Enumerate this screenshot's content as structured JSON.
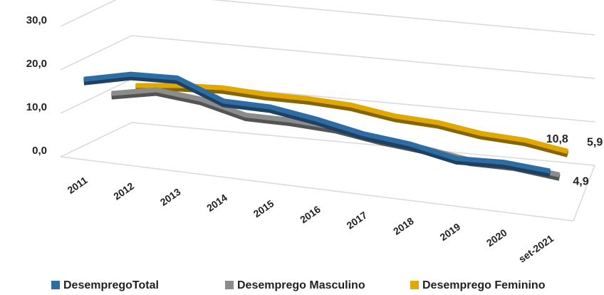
{
  "chart_data": {
    "type": "line",
    "categories": [
      "2011",
      "2012",
      "2013",
      "2014",
      "2015",
      "2016",
      "2017",
      "2018",
      "2019",
      "2020",
      "set-2021"
    ],
    "series": [
      {
        "name": "DesempregoTotal",
        "color": "#2e6da4",
        "values": [
          18.5,
          21,
          21.5,
          17.5,
          17.5,
          16,
          14,
          13,
          11,
          11.5,
          10.8
        ],
        "value_labels": [
          null,
          null,
          null,
          null,
          null,
          null,
          null,
          null,
          null,
          null,
          "10,8"
        ]
      },
      {
        "name": "Desemprego Masculino",
        "color": "#8c8c8c",
        "values": [
          12,
          14,
          13,
          10.5,
          10.5,
          10,
          8.5,
          7.5,
          6,
          6,
          4.9
        ],
        "value_labels": [
          null,
          null,
          null,
          null,
          null,
          null,
          null,
          null,
          null,
          null,
          "4,9"
        ]
      },
      {
        "name": "Desemprego Feminino",
        "color": "#e0a800",
        "values": [
          11,
          12,
          12.5,
          12,
          12,
          11.5,
          10,
          9.5,
          8,
          7.5,
          5.9
        ],
        "value_labels": [
          null,
          null,
          null,
          null,
          null,
          null,
          null,
          null,
          null,
          null,
          "5,9"
        ]
      }
    ],
    "ylim": [
      0,
      30
    ],
    "yticks": [
      {
        "value": 0,
        "label": "0,0"
      },
      {
        "value": 10,
        "label": "10,0"
      },
      {
        "value": 20,
        "label": "20,0"
      },
      {
        "value": 30,
        "label": "30,0"
      }
    ],
    "grid": true,
    "legend": "bottom"
  }
}
